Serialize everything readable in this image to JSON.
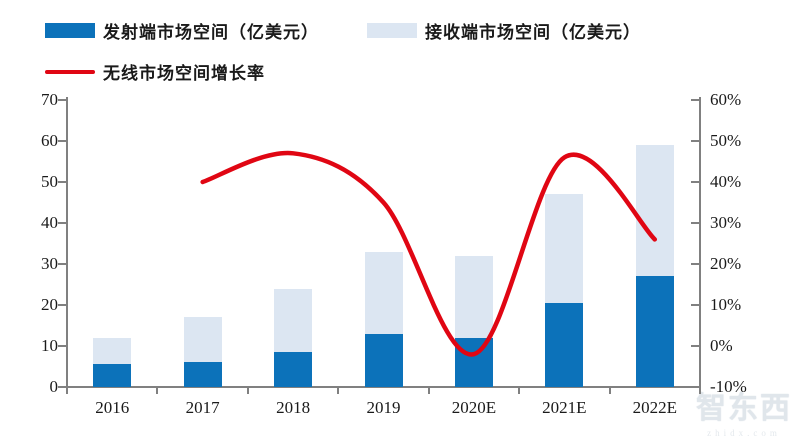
{
  "legend": {
    "transmitter_label": "发射端市场空间（亿美元）",
    "receiver_label": "接收端市场空间（亿美元）",
    "growth_label": "无线市场空间增长率"
  },
  "watermark": {
    "brand": "智东西",
    "domain": "zhidx.com"
  },
  "colors": {
    "transmitter": "#0C72BA",
    "receiver": "#DCE6F2",
    "growth_line": "#E00613",
    "axis": "#808080",
    "text": "#1a1a1a"
  },
  "chart_data": {
    "type": "bar",
    "subtype": "stacked-bars-with-line",
    "categories": [
      "2016",
      "2017",
      "2018",
      "2019",
      "2020E",
      "2021E",
      "2022E"
    ],
    "series": [
      {
        "name": "发射端市场空间（亿美元）",
        "type": "bar",
        "stack": true,
        "color": "#0C72BA",
        "values": [
          5.5,
          6,
          8.5,
          13,
          12,
          20.5,
          27
        ]
      },
      {
        "name": "接收端市场空间（亿美元）",
        "type": "bar",
        "stack": true,
        "color": "#DCE6F2",
        "values": [
          6.5,
          11,
          15.5,
          20,
          20,
          26.5,
          32
        ]
      },
      {
        "name": "无线市场空间增长率",
        "type": "line",
        "axis": "right",
        "color": "#E00613",
        "values": [
          null,
          40,
          47,
          35,
          -2,
          46,
          26
        ],
        "unit": "%"
      }
    ],
    "left_axis": {
      "min": 0,
      "max": 70,
      "step": 10,
      "ticks": [
        "0",
        "10",
        "20",
        "30",
        "40",
        "50",
        "60",
        "70"
      ]
    },
    "right_axis": {
      "min": -10,
      "max": 60,
      "step": 10,
      "ticks": [
        "-10%",
        "0%",
        "10%",
        "20%",
        "30%",
        "40%",
        "50%",
        "60%"
      ]
    },
    "title": "",
    "xlabel": "",
    "ylabel_left": "",
    "ylabel_right": "",
    "grid": false,
    "legend_position": "top-left"
  }
}
